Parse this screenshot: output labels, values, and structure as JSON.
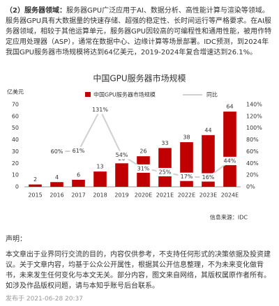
{
  "paragraph": {
    "lead": "（2）服务器领域：",
    "body": "服务器GPU广泛应用于AI、数据分析、高性能计算与渲染等领域。服务器GPU具有大数据量的快速存储、超强的稳定性、长时间运行等严格要求。在AI服务器领域，相较于其他运算单元，服务器GPU因较高的可编程性和通用性能，被用作特定应用处理器（ASP），通常在数据中心、边缘计算等场景部署。IDC预测，到2024年我国GPU服务器市场规模将达到64亿美元，2019-2024年复合增速达到26.1%。"
  },
  "chart_data": {
    "type": "bar",
    "title": "中国GPU服务器市场规模",
    "y_label": "亿美元",
    "source": "信息来源：IDC",
    "categories": [
      "2015",
      "2016",
      "2017",
      "2018",
      "2019",
      "2020E",
      "2021E",
      "2022E",
      "2023E",
      "2024E"
    ],
    "series": [
      {
        "name": "中国GPU服务器市场规模",
        "type": "bar",
        "color": "#c00000",
        "values": [
          2,
          4,
          6,
          13,
          20,
          26,
          33,
          38,
          44,
          64
        ]
      },
      {
        "name": "同比",
        "type": "line",
        "axis": "y2",
        "color": "#d0d0d0",
        "values": [
          null,
          60,
          61,
          131,
          54,
          31,
          25,
          17,
          16,
          44
        ],
        "value_labels": [
          null,
          "60%",
          "61%",
          "131%",
          "54%",
          "31%",
          "25%",
          "17%",
          "16%",
          "44%"
        ]
      }
    ],
    "ylim": [
      0,
      70
    ],
    "yticks": [
      0,
      10,
      20,
      30,
      40,
      50,
      60,
      70
    ],
    "y2lim": [
      0,
      140
    ],
    "y2ticks": [
      {
        "value": 0,
        "label": "0%"
      },
      {
        "value": 20,
        "label": "20%"
      },
      {
        "value": 40,
        "label": "40%"
      },
      {
        "value": 60,
        "label": "60%"
      },
      {
        "value": 80,
        "label": "80%"
      },
      {
        "value": 100,
        "label": "100%"
      },
      {
        "value": 120,
        "label": "120%"
      },
      {
        "value": 140,
        "label": "140%"
      }
    ]
  },
  "disclaimer": {
    "title": "声明：",
    "body": "本文章出于业界同行交流的目的，内容仅供参考，不支持任何形式的决策依据及投资建议。关于文章内容，均基于公众公开属性，根据其公开信息整理，不为未来变化做背书，未来发生任何变化与本文无关。部分内容，图文来自网络，其版权属原作者所有。如涉及作品版权问题，请与本知乎账号后台联系。"
  },
  "date": "发布于 2021-06-28 20:37"
}
